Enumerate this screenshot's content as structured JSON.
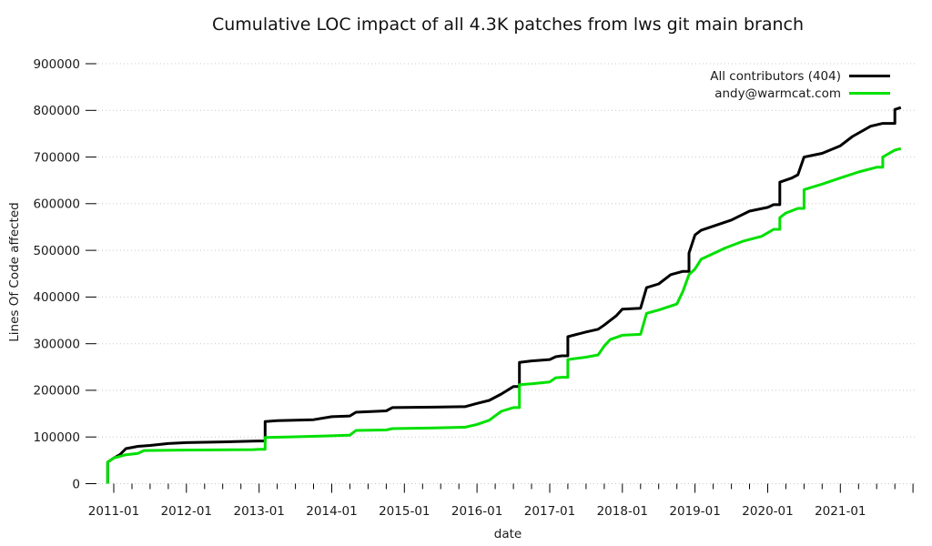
{
  "chart_data": {
    "type": "line",
    "title": "Cumulative LOC impact of all 4.3K patches from lws git main branch",
    "xlabel": "date",
    "ylabel": "Lines Of Code affected",
    "ylim": [
      0,
      900000
    ],
    "y_ticks": [
      0,
      100000,
      200000,
      300000,
      400000,
      500000,
      600000,
      700000,
      800000,
      900000
    ],
    "x_ticks": [
      "2011-01",
      "2012-01",
      "2013-01",
      "2014-01",
      "2015-01",
      "2016-01",
      "2017-01",
      "2018-01",
      "2019-01",
      "2020-01",
      "2021-01"
    ],
    "x_range": [
      "2010-10",
      "2022-02"
    ],
    "x_minor_tick_months": 3,
    "grid": "horizontal-dotted",
    "grid_color": "#c8c8c8",
    "legend": {
      "position": "top-right"
    },
    "series": [
      {
        "name": "All contributors (404)",
        "color": "#000000",
        "points": [
          [
            "2010-12",
            0
          ],
          [
            "2010-12",
            46000
          ],
          [
            "2011-01",
            55000
          ],
          [
            "2011-02",
            62000
          ],
          [
            "2011-03",
            75000
          ],
          [
            "2011-05",
            80000
          ],
          [
            "2011-07",
            82000
          ],
          [
            "2011-10",
            86000
          ],
          [
            "2012-01",
            88000
          ],
          [
            "2012-07",
            89500
          ],
          [
            "2012-12",
            91000
          ],
          [
            "2013-01",
            91500
          ],
          [
            "2013-02",
            91500
          ],
          [
            "2013-02",
            133000
          ],
          [
            "2013-04",
            135000
          ],
          [
            "2013-10",
            137000
          ],
          [
            "2014-01",
            143500
          ],
          [
            "2014-04",
            145000
          ],
          [
            "2014-05",
            153000
          ],
          [
            "2014-10",
            156000
          ],
          [
            "2014-11",
            163000
          ],
          [
            "2015-06",
            164000
          ],
          [
            "2015-11",
            165000
          ],
          [
            "2016-01",
            172000
          ],
          [
            "2016-03",
            178500
          ],
          [
            "2016-05",
            192000
          ],
          [
            "2016-07",
            208000
          ],
          [
            "2016-08",
            208000
          ],
          [
            "2016-08",
            260000
          ],
          [
            "2016-10",
            263000
          ],
          [
            "2017-01",
            266000
          ],
          [
            "2017-02",
            272000
          ],
          [
            "2017-03",
            274000
          ],
          [
            "2017-04",
            274000
          ],
          [
            "2017-04",
            315000
          ],
          [
            "2017-07",
            325000
          ],
          [
            "2017-09",
            331000
          ],
          [
            "2017-10",
            340000
          ],
          [
            "2017-12",
            360000
          ],
          [
            "2018-01",
            374000
          ],
          [
            "2018-04",
            376000
          ],
          [
            "2018-05",
            420000
          ],
          [
            "2018-07",
            428000
          ],
          [
            "2018-09",
            448000
          ],
          [
            "2018-11",
            455000
          ],
          [
            "2018-12",
            455000
          ],
          [
            "2018-12",
            494000
          ],
          [
            "2019-01",
            533000
          ],
          [
            "2019-02",
            543000
          ],
          [
            "2019-07",
            565000
          ],
          [
            "2019-10",
            584000
          ],
          [
            "2020-01",
            592000
          ],
          [
            "2020-02",
            598000
          ],
          [
            "2020-03",
            598000
          ],
          [
            "2020-03",
            646000
          ],
          [
            "2020-05",
            655000
          ],
          [
            "2020-06",
            662000
          ],
          [
            "2020-07",
            700000
          ],
          [
            "2020-10",
            708000
          ],
          [
            "2021-01",
            724000
          ],
          [
            "2021-03",
            744000
          ],
          [
            "2021-06",
            766000
          ],
          [
            "2021-08",
            772000
          ],
          [
            "2021-10",
            772000
          ],
          [
            "2021-10",
            802000
          ],
          [
            "2021-11",
            806000
          ]
        ]
      },
      {
        "name": "andy@warmcat.com",
        "color": "#00e000",
        "points": [
          [
            "2010-12",
            0
          ],
          [
            "2010-12",
            46000
          ],
          [
            "2011-01",
            55000
          ],
          [
            "2011-03",
            62000
          ],
          [
            "2011-05",
            65000
          ],
          [
            "2011-06",
            71000
          ],
          [
            "2011-12",
            72000
          ],
          [
            "2012-12",
            73000
          ],
          [
            "2013-01",
            73500
          ],
          [
            "2013-02",
            73500
          ],
          [
            "2013-02",
            99000
          ],
          [
            "2013-07",
            100500
          ],
          [
            "2014-01",
            102500
          ],
          [
            "2014-04",
            104000
          ],
          [
            "2014-05",
            114000
          ],
          [
            "2014-10",
            115000
          ],
          [
            "2014-11",
            118000
          ],
          [
            "2015-06",
            119500
          ],
          [
            "2015-11",
            121000
          ],
          [
            "2016-01",
            127000
          ],
          [
            "2016-03",
            136000
          ],
          [
            "2016-05",
            155000
          ],
          [
            "2016-07",
            163000
          ],
          [
            "2016-08",
            163000
          ],
          [
            "2016-08",
            212000
          ],
          [
            "2016-10",
            214000
          ],
          [
            "2017-01",
            218000
          ],
          [
            "2017-02",
            227000
          ],
          [
            "2017-03",
            228000
          ],
          [
            "2017-04",
            228000
          ],
          [
            "2017-04",
            266000
          ],
          [
            "2017-07",
            271000
          ],
          [
            "2017-09",
            276000
          ],
          [
            "2017-10",
            295000
          ],
          [
            "2017-11",
            309000
          ],
          [
            "2018-01",
            318000
          ],
          [
            "2018-04",
            320000
          ],
          [
            "2018-05",
            365000
          ],
          [
            "2018-07",
            372000
          ],
          [
            "2018-10",
            385000
          ],
          [
            "2018-11",
            412000
          ],
          [
            "2018-12",
            448000
          ],
          [
            "2019-01",
            460000
          ],
          [
            "2019-02",
            481000
          ],
          [
            "2019-06",
            505000
          ],
          [
            "2019-09",
            520000
          ],
          [
            "2019-12",
            530000
          ],
          [
            "2020-02",
            545000
          ],
          [
            "2020-03",
            545000
          ],
          [
            "2020-03",
            570000
          ],
          [
            "2020-04",
            580000
          ],
          [
            "2020-06",
            590000
          ],
          [
            "2020-07",
            590000
          ],
          [
            "2020-07",
            630000
          ],
          [
            "2020-10",
            642000
          ],
          [
            "2021-01",
            655000
          ],
          [
            "2021-04",
            668000
          ],
          [
            "2021-07",
            678000
          ],
          [
            "2021-08",
            678000
          ],
          [
            "2021-08",
            700000
          ],
          [
            "2021-10",
            715000
          ],
          [
            "2021-11",
            718000
          ]
        ]
      }
    ]
  }
}
